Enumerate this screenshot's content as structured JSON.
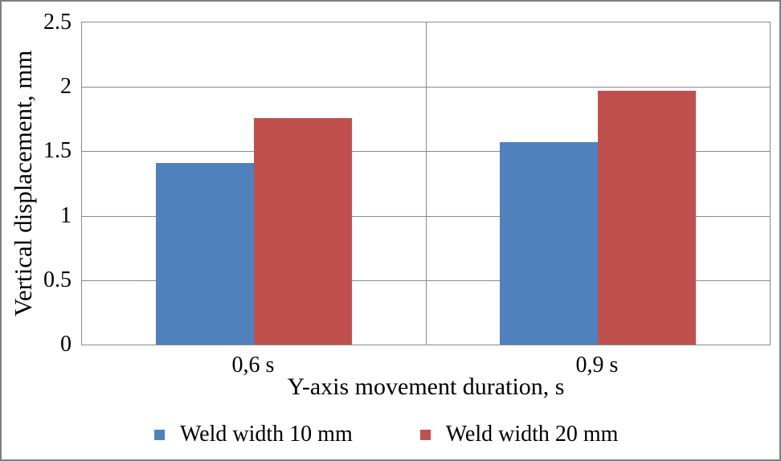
{
  "chart_data": {
    "type": "bar",
    "categories": [
      "0,6 s",
      "0,9 s"
    ],
    "series": [
      {
        "name": "Weld width 10 mm",
        "color": "#4F81BD",
        "values": [
          1.41,
          1.57
        ]
      },
      {
        "name": "Weld width 20 mm",
        "color": "#C0504D",
        "values": [
          1.76,
          1.97
        ]
      }
    ],
    "xlabel": "Y-axis movement duration, s",
    "ylabel": "Vertical displacement, mm",
    "ylim": [
      0,
      2.5
    ],
    "ytick_step": 0.5,
    "ytick_labels": [
      "0",
      "0.5",
      "1",
      "1.5",
      "2",
      "2.5"
    ],
    "grid": true,
    "gridline_color": "#8a8a8a",
    "legend_position": "bottom"
  }
}
